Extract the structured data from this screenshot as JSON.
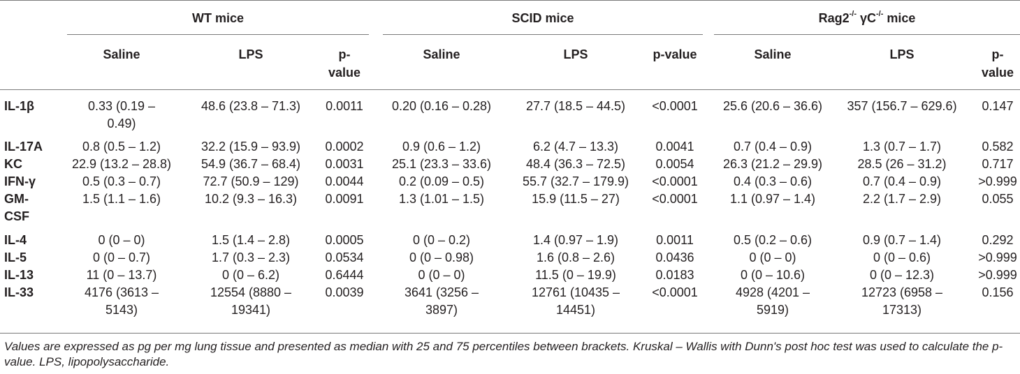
{
  "groups": [
    {
      "name_pre": "WT mice",
      "sup1": "",
      "mid": "",
      "sup2": "",
      "name_post": ""
    },
    {
      "name_pre": "SCID mice",
      "sup1": "",
      "mid": "",
      "sup2": "",
      "name_post": ""
    },
    {
      "name_pre": "Rag2",
      "sup1": "-/-",
      "mid": " γC",
      "sup2": "-/-",
      "name_post": " mice"
    }
  ],
  "subheaders": [
    [
      "Saline",
      "LPS",
      "p-",
      "value"
    ],
    [
      "Saline",
      "LPS",
      "p-value",
      ""
    ],
    [
      "Saline",
      "LPS",
      "p-",
      "value"
    ]
  ],
  "rows": [
    {
      "label": [
        "IL-1β",
        ""
      ],
      "cells": [
        [
          "0.33 (0.19  –",
          "0.49)"
        ],
        [
          "48.6 (23.8 – 71.3)",
          ""
        ],
        [
          "0.0011",
          ""
        ],
        [
          "0.20 (0.16 – 0.28)",
          ""
        ],
        [
          "27.7 (18.5 – 44.5)",
          ""
        ],
        [
          "<0.0001",
          ""
        ],
        [
          "25.6 (20.6 – 36.6)",
          ""
        ],
        [
          "357 (156.7 – 629.6)",
          ""
        ],
        [
          "0.147",
          ""
        ]
      ]
    },
    {
      "label": [
        "IL-17A",
        ""
      ],
      "cells": [
        [
          "0.8 (0.5  –  1.2)",
          ""
        ],
        [
          "32.2 (15.9 – 93.9)",
          ""
        ],
        [
          "0.0002",
          ""
        ],
        [
          "0.9 (0.6 – 1.2)",
          ""
        ],
        [
          "6.2 (4.7 – 13.3)",
          ""
        ],
        [
          "0.0041",
          ""
        ],
        [
          "0.7 (0.4 – 0.9)",
          ""
        ],
        [
          "1.3 (0.7 – 1.7)",
          ""
        ],
        [
          "0.582",
          ""
        ]
      ]
    },
    {
      "label": [
        "KC",
        ""
      ],
      "cells": [
        [
          "22.9 (13.2 – 28.8)",
          ""
        ],
        [
          "54.9 (36.7 – 68.4)",
          ""
        ],
        [
          "0.0031",
          ""
        ],
        [
          "25.1 (23.3 – 33.6)",
          ""
        ],
        [
          "48.4 (36.3 – 72.5)",
          ""
        ],
        [
          "0.0054",
          ""
        ],
        [
          "26.3 (21.2 – 29.9)",
          ""
        ],
        [
          "28.5 (26 – 31.2)",
          ""
        ],
        [
          "0.717",
          ""
        ]
      ]
    },
    {
      "label": [
        "IFN-γ",
        ""
      ],
      "cells": [
        [
          "0.5 (0.3 – 0.7)",
          ""
        ],
        [
          "72.7 (50.9 – 129)",
          ""
        ],
        [
          "0.0044",
          ""
        ],
        [
          "0.2 (0.09 – 0.5)",
          ""
        ],
        [
          "55.7 (32.7 – 179.9)",
          ""
        ],
        [
          "<0.0001",
          ""
        ],
        [
          "0.4 (0.3 – 0.6)",
          ""
        ],
        [
          "0.7 (0.4 – 0.9)",
          ""
        ],
        [
          ">0.999",
          ""
        ]
      ]
    },
    {
      "label": [
        "GM-",
        "CSF"
      ],
      "cells": [
        [
          "1.5 (1.1 – 1.6)",
          ""
        ],
        [
          "10.2 (9.3 – 16.3)",
          ""
        ],
        [
          "0.0091",
          ""
        ],
        [
          "1.3 (1.01 – 1.5)",
          ""
        ],
        [
          "15.9 (11.5 – 27)",
          ""
        ],
        [
          "<0.0001",
          ""
        ],
        [
          "1.1 (0.97 – 1.4)",
          ""
        ],
        [
          "2.2 (1.7 – 2.9)",
          ""
        ],
        [
          "0.055",
          ""
        ]
      ]
    },
    {
      "label": [
        "IL-4",
        ""
      ],
      "cells": [
        [
          "0 (0 – 0)",
          ""
        ],
        [
          "1.5 (1.4 – 2.8)",
          ""
        ],
        [
          "0.0005",
          ""
        ],
        [
          "0 (0 – 0.2)",
          ""
        ],
        [
          "1.4 (0.97 – 1.9)",
          ""
        ],
        [
          "0.0011",
          ""
        ],
        [
          "0.5 (0.2 – 0.6)",
          ""
        ],
        [
          "0.9 (0.7 – 1.4)",
          ""
        ],
        [
          "0.292",
          ""
        ]
      ]
    },
    {
      "label": [
        "IL-5",
        ""
      ],
      "cells": [
        [
          "0 (0 – 0.7)",
          ""
        ],
        [
          "1.7 (0.3 – 2.3)",
          ""
        ],
        [
          "0.0534",
          ""
        ],
        [
          "0 (0 – 0.98)",
          ""
        ],
        [
          "1.6 (0.8 – 2.6)",
          ""
        ],
        [
          "0.0436",
          ""
        ],
        [
          "0 (0 – 0)",
          ""
        ],
        [
          "0 (0 – 0.6)",
          ""
        ],
        [
          ">0.999",
          ""
        ]
      ]
    },
    {
      "label": [
        "IL-13",
        ""
      ],
      "cells": [
        [
          "11 (0 – 13.7)",
          ""
        ],
        [
          "0 (0 – 6.2)",
          ""
        ],
        [
          "0.6444",
          ""
        ],
        [
          "0 (0 – 0)",
          ""
        ],
        [
          "11.5 (0 – 19.9)",
          ""
        ],
        [
          "0.0183",
          ""
        ],
        [
          "0 (0 – 10.6)",
          ""
        ],
        [
          "0 (0 – 12.3)",
          ""
        ],
        [
          ">0.999",
          ""
        ]
      ]
    },
    {
      "label": [
        "IL-33",
        ""
      ],
      "cells": [
        [
          "4176 (3613 –",
          "5143)"
        ],
        [
          "12554 (8880 –",
          "19341)"
        ],
        [
          "0.0039",
          ""
        ],
        [
          "3641 (3256 –",
          "3897)"
        ],
        [
          "12761 (10435 –",
          "14451)"
        ],
        [
          "<0.0001",
          ""
        ],
        [
          "4928 (4201 –",
          "5919)"
        ],
        [
          "12723 (6958 –",
          "17313)"
        ],
        [
          "0.156",
          ""
        ]
      ]
    }
  ],
  "footnote": "Values are expressed as pg per mg lung tissue and presented as median with 25 and 75 percentiles between brackets. Kruskal – Wallis with Dunn's post hoc test was used to calculate the p-value. LPS, lipopolysaccharide."
}
